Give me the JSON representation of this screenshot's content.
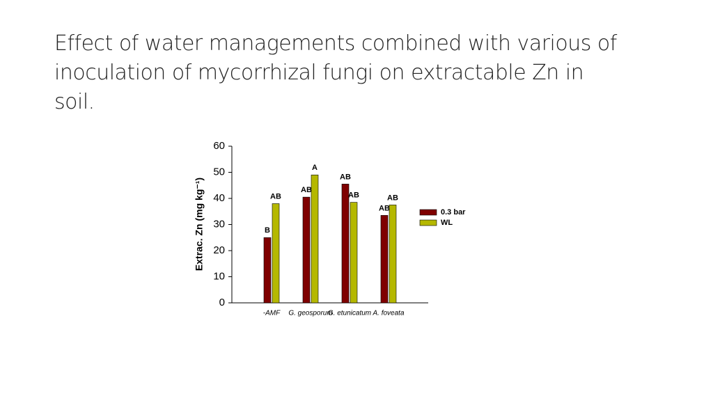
{
  "slide_title": "Effect of water managements  combined with  various of inoculation of mycorrhizal fungi on  extractable Zn in  soil.",
  "chart_data": {
    "type": "bar",
    "ylabel": "Extrac. Zn (mg kg⁻¹)",
    "categories": [
      "-AMF",
      "G. geosporum",
      "G. etunicatum",
      "A. foveata"
    ],
    "series": [
      {
        "name": "0.3 bar",
        "color": "#7f0000",
        "values": [
          25,
          40.5,
          45.5,
          33.5
        ],
        "significance": [
          "B",
          "AB",
          "AB",
          "AB"
        ]
      },
      {
        "name": "WL",
        "color": "#b5b800",
        "values": [
          38,
          49,
          38.5,
          37.5
        ],
        "significance": [
          "AB",
          "A",
          "AB",
          "AB"
        ]
      }
    ],
    "ylim": [
      0,
      60
    ],
    "yticks": [
      0,
      10,
      20,
      30,
      40,
      50,
      60
    ],
    "legend": "right"
  }
}
